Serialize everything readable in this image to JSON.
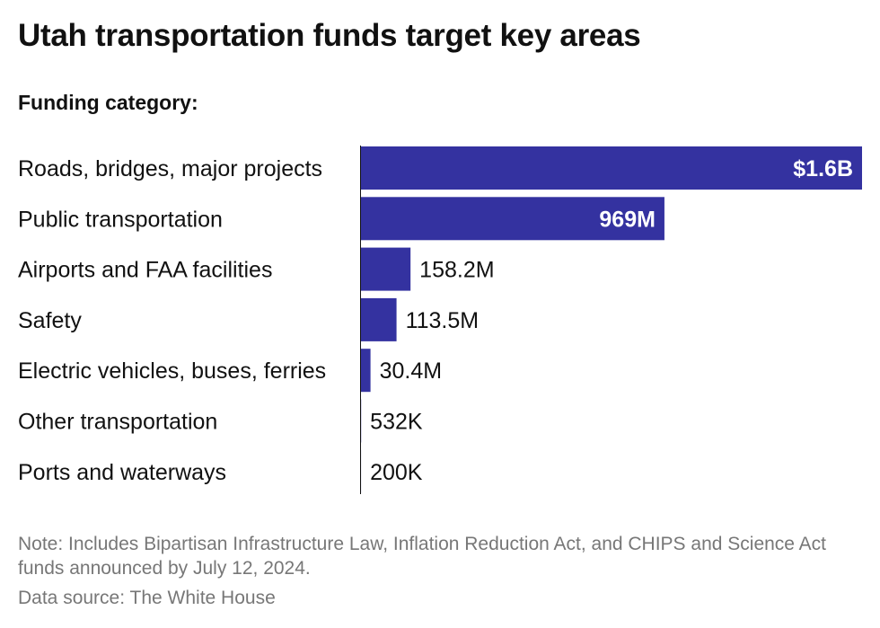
{
  "title": "Utah transportation funds target key areas",
  "category_heading": "Funding category:",
  "note": "Note: Includes Bipartisan Infrastructure Law, Inflation Reduction Act, and CHIPS and Science Act funds announced by July 12, 2024.",
  "source": "Data source: The White House",
  "colors": {
    "bar": "#3432a0",
    "inside_label": "#ffffff",
    "outside_label": "#111111"
  },
  "chart_data": {
    "type": "bar",
    "orientation": "horizontal",
    "categories": [
      "Roads, bridges, major projects",
      "Public transportation",
      "Airports and FAA facilities",
      "Safety",
      "Electric vehicles, buses, ferries",
      "Other transportation",
      "Ports and waterways"
    ],
    "values": [
      1600000000,
      969000000,
      158200000,
      113500000,
      30400000,
      532000,
      200000
    ],
    "value_labels": [
      "$1.6B",
      "969M",
      "158.2M",
      "113.5M",
      "30.4M",
      "532K",
      "200K"
    ],
    "xlim": [
      0,
      1600000000
    ],
    "grid": false,
    "legend": "none"
  }
}
